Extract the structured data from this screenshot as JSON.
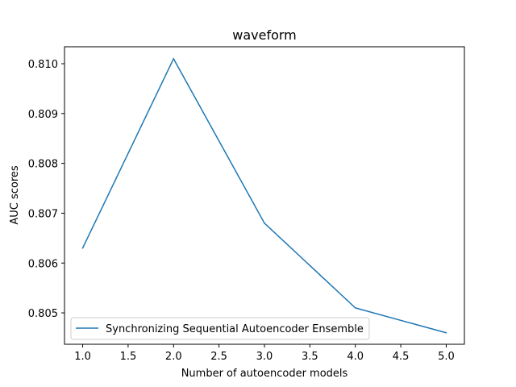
{
  "chart_data": {
    "type": "line",
    "title": "waveform",
    "xlabel": "Number of autoencoder models",
    "ylabel": "AUC scores",
    "xlim": [
      0.8,
      5.2
    ],
    "ylim": [
      0.80437,
      0.81034
    ],
    "x_ticks": [
      "1.0",
      "1.5",
      "2.0",
      "2.5",
      "3.0",
      "3.5",
      "4.0",
      "4.5",
      "5.0"
    ],
    "y_ticks": [
      "0.805",
      "0.806",
      "0.807",
      "0.808",
      "0.809",
      "0.810"
    ],
    "grid": false,
    "legend_position": "lower left",
    "series": [
      {
        "name": "Synchronizing Sequential Autoencoder Ensemble",
        "color": "#1f77b4",
        "x": [
          1,
          2,
          3,
          4,
          5
        ],
        "y": [
          0.8063,
          0.8101,
          0.8068,
          0.8051,
          0.8046
        ]
      }
    ]
  }
}
